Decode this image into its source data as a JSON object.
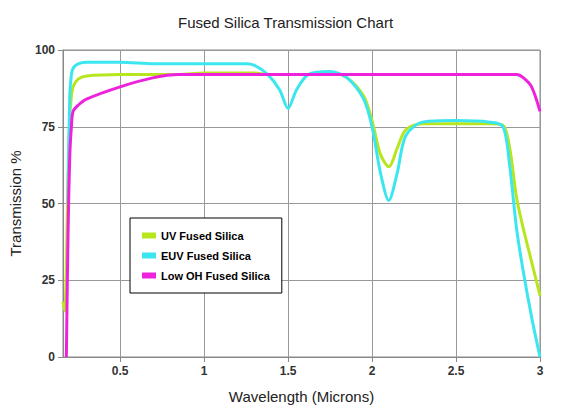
{
  "chart_data": {
    "type": "line",
    "title": "Fused Silica Transmission Chart",
    "x_label": "Wavelength (Microns)",
    "y_label": "Transmission %",
    "x": [
      0.16,
      0.17,
      0.18,
      0.19,
      0.2,
      0.21,
      0.22,
      0.25,
      0.3,
      0.5,
      0.7,
      0.85,
      1,
      1.25,
      1.3,
      1.38,
      1.45,
      1.5,
      1.55,
      1.62,
      1.75,
      1.85,
      1.95,
      2,
      2.05,
      2.1,
      2.15,
      2.2,
      2.3,
      2.5,
      2.7,
      2.78,
      2.82,
      2.86,
      2.9,
      2.95,
      3
    ],
    "series": [
      {
        "name": "UV Fused Silica",
        "color": "#b8e61e",
        "values": [
          18,
          15,
          30,
          60,
          78,
          85,
          88,
          90.5,
          91.5,
          92,
          92,
          92,
          92.5,
          92.5,
          92.5,
          92,
          92,
          92,
          92,
          92,
          92.5,
          91,
          85,
          77,
          66,
          62,
          68,
          74,
          76,
          76,
          76,
          75.5,
          68,
          52,
          42,
          31,
          20
        ]
      },
      {
        "name": "EUV Fused Silica",
        "color": "#3ce6f0",
        "values": [
          null,
          null,
          null,
          50,
          85,
          92,
          94,
          95.5,
          96,
          96,
          95.5,
          95.5,
          95.5,
          95.5,
          95,
          92,
          87,
          81,
          87,
          92,
          93,
          91,
          84,
          75,
          60,
          51,
          60,
          72,
          76.5,
          77,
          76.5,
          75,
          62,
          42,
          28,
          13,
          0
        ]
      },
      {
        "name": "Low OH Fused Silica",
        "color": "#ee22dd",
        "values": [
          null,
          null,
          0,
          40,
          65,
          75,
          80,
          82,
          84,
          88,
          91,
          92,
          92,
          92,
          92,
          92,
          92,
          92,
          92,
          92,
          92,
          92,
          92,
          92,
          92,
          92,
          92,
          92,
          92,
          92,
          92,
          92,
          92,
          92,
          91,
          88,
          80
        ]
      }
    ],
    "xlim": [
      0.16,
      3
    ],
    "xticks": [
      0.5,
      1,
      1.5,
      2,
      2.5,
      3
    ],
    "ylim": [
      0,
      100
    ],
    "yticks": [
      0,
      25,
      50,
      75,
      100
    ],
    "grid": true,
    "legend": "lower left"
  }
}
